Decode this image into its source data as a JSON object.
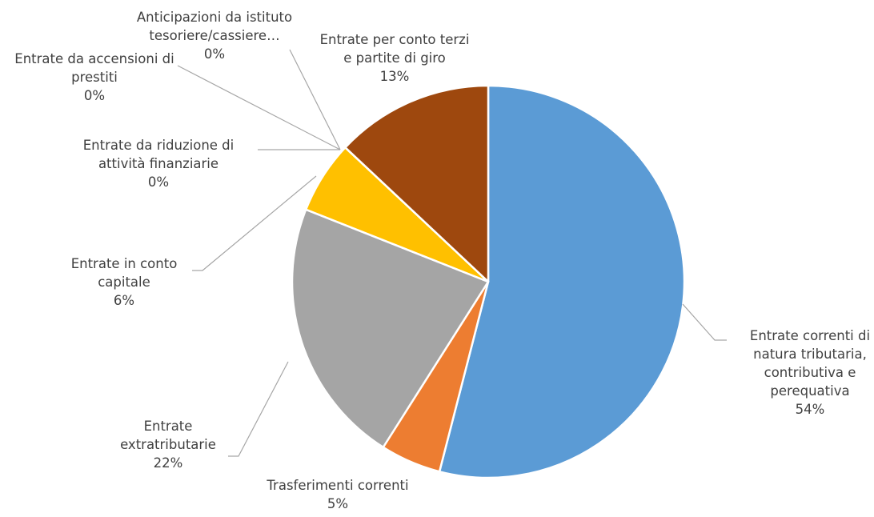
{
  "chart_data": {
    "type": "pie",
    "categories": [
      "Entrate correnti di natura tributaria, contributiva e perequativa",
      "Trasferimenti correnti",
      "Entrate extratributarie",
      "Entrate in conto capitale",
      "Entrate da riduzione di attività finanziarie",
      "Entrate da accensioni di prestiti",
      "Anticipazioni da istituto tesoriere/cassiere…",
      "Entrate per conto terzi e partite di giro"
    ],
    "values": [
      54,
      5,
      22,
      6,
      0,
      0,
      0,
      13
    ],
    "value_labels": [
      "54%",
      "5%",
      "22%",
      "6%",
      "0%",
      "0%",
      "0%",
      "13%"
    ],
    "colors": [
      "#5b9bd5",
      "#ed7d31",
      "#a5a5a5",
      "#ffc000",
      "#4472c4",
      "#70ad47",
      "#264478",
      "#9e480e"
    ]
  }
}
